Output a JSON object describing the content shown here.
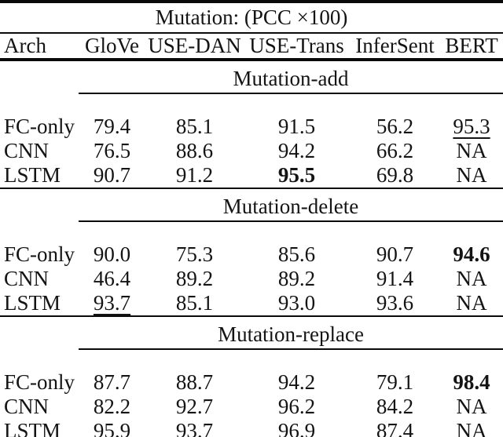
{
  "table": {
    "title": "Mutation: (PCC ×100)",
    "columns": [
      "Arch",
      "GloVe",
      "USE-DAN",
      "USE-Trans",
      "InferSent",
      "BERT"
    ],
    "na_label": "NA",
    "sections": [
      {
        "label": "Mutation-add",
        "rows": [
          {
            "arch": "FC-only",
            "cells": [
              {
                "t": "79.4"
              },
              {
                "t": "85.1"
              },
              {
                "t": "91.5"
              },
              {
                "t": "56.2"
              },
              {
                "t": "95.3",
                "style": "underline"
              }
            ]
          },
          {
            "arch": "CNN",
            "cells": [
              {
                "t": "76.5"
              },
              {
                "t": "88.6"
              },
              {
                "t": "94.2"
              },
              {
                "t": "66.2"
              },
              {
                "t": "NA"
              }
            ]
          },
          {
            "arch": "LSTM",
            "cells": [
              {
                "t": "90.7"
              },
              {
                "t": "91.2"
              },
              {
                "t": "95.5",
                "style": "bold"
              },
              {
                "t": "69.8"
              },
              {
                "t": "NA"
              }
            ]
          }
        ]
      },
      {
        "label": "Mutation-delete",
        "rows": [
          {
            "arch": "FC-only",
            "cells": [
              {
                "t": "90.0"
              },
              {
                "t": "75.3"
              },
              {
                "t": "85.6"
              },
              {
                "t": "90.7"
              },
              {
                "t": "94.6",
                "style": "bold"
              }
            ]
          },
          {
            "arch": "CNN",
            "cells": [
              {
                "t": "46.4"
              },
              {
                "t": "89.2"
              },
              {
                "t": "89.2"
              },
              {
                "t": "91.4"
              },
              {
                "t": "NA"
              }
            ]
          },
          {
            "arch": "LSTM",
            "cells": [
              {
                "t": "93.7",
                "style": "underline"
              },
              {
                "t": "85.1"
              },
              {
                "t": "93.0"
              },
              {
                "t": "93.6"
              },
              {
                "t": "NA"
              }
            ]
          }
        ]
      },
      {
        "label": "Mutation-replace",
        "rows": [
          {
            "arch": "FC-only",
            "cells": [
              {
                "t": "87.7"
              },
              {
                "t": "88.7"
              },
              {
                "t": "94.2"
              },
              {
                "t": "79.1"
              },
              {
                "t": "98.4",
                "style": "bold"
              }
            ]
          },
          {
            "arch": "CNN",
            "cells": [
              {
                "t": "82.2"
              },
              {
                "t": "92.7"
              },
              {
                "t": "96.2"
              },
              {
                "t": "84.2"
              },
              {
                "t": "NA"
              }
            ]
          },
          {
            "arch": "LSTM",
            "cells": [
              {
                "t": "95.9"
              },
              {
                "t": "93.7"
              },
              {
                "t": "96.9",
                "style": "underline"
              },
              {
                "t": "87.4"
              },
              {
                "t": "NA"
              }
            ]
          }
        ]
      }
    ]
  }
}
